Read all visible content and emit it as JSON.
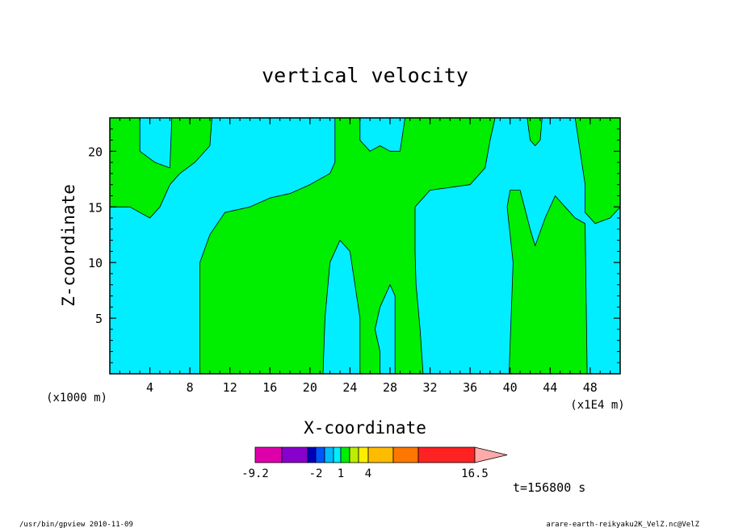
{
  "chart_data": {
    "type": "heatmap",
    "title": "vertical velocity",
    "xlabel": "X-coordinate",
    "ylabel": "Z-coordinate",
    "x_unit_label": "(x1E4 m)",
    "y_unit_label": "(x1000 m)",
    "xlim": [
      0,
      51
    ],
    "ylim": [
      0,
      23
    ],
    "x_ticks": [
      4,
      8,
      12,
      16,
      20,
      24,
      28,
      32,
      36,
      40,
      44,
      48
    ],
    "x_tick_labels": [
      "4",
      "8",
      "12",
      "16",
      "20",
      "24",
      "28",
      "32",
      "36",
      "40",
      "44",
      "48"
    ],
    "y_ticks": [
      5,
      10,
      15,
      20
    ],
    "y_tick_labels": [
      "5",
      "10",
      "15",
      "20"
    ],
    "background_color": "#00eeff",
    "region_color": "#00ee00",
    "regions": [
      [
        [
          0,
          23
        ],
        [
          3,
          23
        ],
        [
          3,
          20
        ],
        [
          4.5,
          19
        ],
        [
          6,
          18.5
        ],
        [
          6.2,
          23
        ],
        [
          10.2,
          23
        ],
        [
          10,
          20.5
        ],
        [
          8.5,
          19
        ],
        [
          7,
          18
        ],
        [
          6,
          17
        ],
        [
          5,
          15
        ],
        [
          4,
          14
        ],
        [
          3,
          14.5
        ],
        [
          2,
          15
        ],
        [
          0,
          15
        ]
      ],
      [
        [
          9,
          0
        ],
        [
          9,
          10
        ],
        [
          10,
          12.5
        ],
        [
          11.5,
          14.5
        ],
        [
          14,
          15
        ],
        [
          16,
          15.8
        ],
        [
          18,
          16.2
        ],
        [
          20,
          17
        ],
        [
          22,
          18
        ],
        [
          22.5,
          19
        ],
        [
          22.5,
          23
        ],
        [
          25,
          23
        ],
        [
          25,
          21
        ],
        [
          26,
          20
        ],
        [
          27,
          20.5
        ],
        [
          28,
          20
        ],
        [
          29,
          20
        ],
        [
          29.5,
          23
        ],
        [
          38.5,
          23
        ],
        [
          38,
          21
        ],
        [
          37.5,
          18.5
        ],
        [
          36,
          17
        ],
        [
          32,
          16.5
        ],
        [
          30.5,
          15
        ],
        [
          30.5,
          11
        ],
        [
          30.6,
          8
        ],
        [
          31,
          4
        ],
        [
          31.3,
          0
        ],
        [
          28.5,
          0
        ],
        [
          28.5,
          7
        ],
        [
          28,
          8
        ],
        [
          27,
          6
        ],
        [
          26.5,
          4
        ],
        [
          27,
          2
        ],
        [
          27,
          0
        ],
        [
          25,
          0
        ],
        [
          25,
          5
        ],
        [
          24,
          11
        ],
        [
          23,
          12
        ],
        [
          22,
          10
        ],
        [
          21.5,
          5
        ],
        [
          21.3,
          0
        ]
      ],
      [
        [
          39.9,
          0
        ],
        [
          40.3,
          10
        ],
        [
          39.7,
          15
        ],
        [
          40,
          16.5
        ],
        [
          41,
          16.5
        ],
        [
          42,
          13
        ],
        [
          42.5,
          11.5
        ],
        [
          43.5,
          14
        ],
        [
          44.5,
          16
        ],
        [
          45.5,
          15
        ],
        [
          46.5,
          14
        ],
        [
          47.5,
          13.5
        ],
        [
          47.7,
          0
        ]
      ],
      [
        [
          41.7,
          23
        ],
        [
          42,
          21
        ],
        [
          42.5,
          20.5
        ],
        [
          43,
          21
        ],
        [
          43.2,
          23
        ]
      ],
      [
        [
          46.5,
          23
        ],
        [
          47.5,
          17
        ],
        [
          47.5,
          14.5
        ],
        [
          48.5,
          13.5
        ],
        [
          50,
          14
        ],
        [
          51,
          15
        ],
        [
          51,
          23
        ]
      ]
    ]
  },
  "colorbar": {
    "colors": [
      "#dd00aa",
      "#8800cc",
      "#0000bb",
      "#0055ff",
      "#00bbff",
      "#00eeff",
      "#00ee00",
      "#bbee00",
      "#ffee00",
      "#ffbb00",
      "#ff7700",
      "#ff2222",
      "#ff7777",
      "#ffaaaa"
    ],
    "labels": [
      "-9.2",
      "-2",
      "1",
      "4",
      "16.5"
    ]
  },
  "time_label": "t=156800 s",
  "footer": {
    "left": "/usr/bin/gpview  2010-11-09",
    "right": "arare-earth-reikyaku2K_VelZ.nc@VelZ"
  }
}
